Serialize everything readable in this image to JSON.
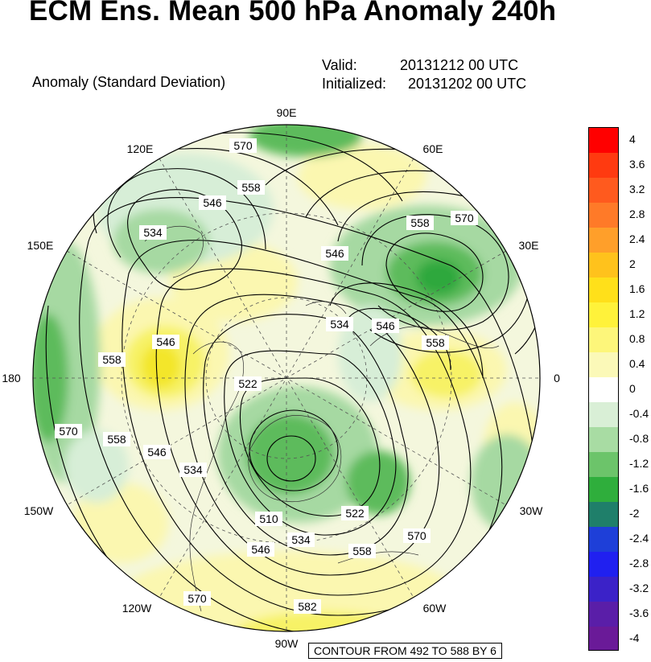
{
  "header": {
    "title": "ECM Ens. Mean 500 hPa Anomaly 240h",
    "subtitle": "Anomaly (Standard Deviation)",
    "valid_label": "Valid:",
    "valid_value": "20131212 00 UTC",
    "initialized_label": "Initialized:",
    "initialized_value": "20131202 00 UTC"
  },
  "map": {
    "projection": "north polar stereographic",
    "longitude_labels": [
      "90E",
      "60E",
      "30E",
      "0",
      "30W",
      "60W",
      "90W",
      "120W",
      "150W",
      "180",
      "150E",
      "120E"
    ],
    "contour_labels": [
      "570",
      "558",
      "546",
      "534",
      "546",
      "558",
      "570",
      "534",
      "546",
      "558",
      "558",
      "546",
      "522",
      "570",
      "558",
      "546",
      "534",
      "510",
      "522",
      "534",
      "546",
      "558",
      "570",
      "570",
      "582"
    ],
    "fill_colors": {
      "neg_light": "#d7eed7",
      "neg_mid": "#a6d9a2",
      "neg_strong": "#5dbb5b",
      "neg_max": "#2fa83c",
      "pos_light": "#fbf7b0",
      "pos_mid": "#f7f266",
      "pos_strong": "#f3e62a"
    }
  },
  "legend": {
    "labels": [
      "4",
      "3.6",
      "3.2",
      "2.8",
      "2.4",
      "2",
      "1.6",
      "1.2",
      "0.8",
      "0.4",
      "0",
      "-0.4",
      "-0.8",
      "-1.2",
      "-1.6",
      "-2",
      "-2.4",
      "-2.8",
      "-3.2",
      "-3.6",
      "-4"
    ],
    "colors": [
      "#ff0000",
      "#ff3a10",
      "#ff5a1e",
      "#ff7a28",
      "#ff9f2a",
      "#ffc21c",
      "#ffe01a",
      "#fff23a",
      "#fdf67a",
      "#fbf9b8",
      "#ffffff",
      "#d9efd6",
      "#a8dca3",
      "#6cc46a",
      "#2fae3c",
      "#1f7f6a",
      "#1e3fd8",
      "#2020f0",
      "#3b22c8",
      "#5a1ea8",
      "#6a1a98"
    ]
  },
  "contour_note": "CONTOUR FROM 492 TO 588 BY 6"
}
